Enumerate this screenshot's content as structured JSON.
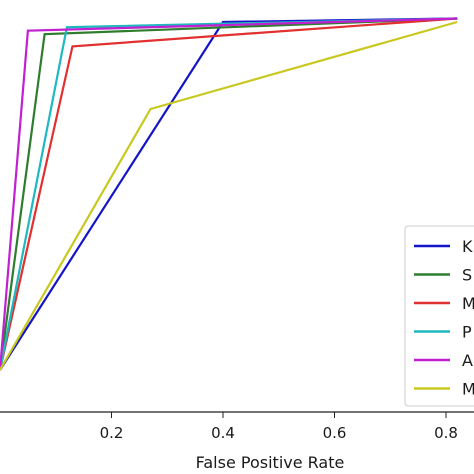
{
  "chart_data": {
    "type": "line",
    "title": "",
    "xlabel": "False Positive Rate",
    "ylabel": "",
    "xlim": [
      -0.03,
      0.82
    ],
    "ylim": [
      0.06,
      1.05
    ],
    "x_ticks": [
      0.2,
      0.4,
      0.6,
      0.8
    ],
    "x_tick_labels": [
      "0.2",
      "0.4",
      "0.6",
      "0.8"
    ],
    "grid": false,
    "legend_placement": "lower-right",
    "series": [
      {
        "name": "K",
        "color": "#1414c8",
        "x": [
          0.0,
          0.4,
          0.82
        ],
        "y": [
          0.0,
          1.0,
          1.01
        ]
      },
      {
        "name": "S",
        "color": "#2e7d2e",
        "x": [
          0.0,
          0.08,
          0.82
        ],
        "y": [
          0.0,
          0.965,
          1.01
        ]
      },
      {
        "name": "M",
        "color": "#e03030",
        "x": [
          0.0,
          0.13,
          0.82
        ],
        "y": [
          0.0,
          0.93,
          1.01
        ]
      },
      {
        "name": "P",
        "color": "#20b8c0",
        "x": [
          0.0,
          0.12,
          0.82
        ],
        "y": [
          0.0,
          0.985,
          1.01
        ]
      },
      {
        "name": "A",
        "color": "#c020d0",
        "x": [
          0.0,
          0.05,
          0.82
        ],
        "y": [
          0.0,
          0.975,
          1.01
        ]
      },
      {
        "name": "M",
        "color": "#c8c820",
        "x": [
          0.0,
          0.27,
          0.82
        ],
        "y": [
          0.0,
          0.75,
          1.0
        ]
      }
    ]
  }
}
